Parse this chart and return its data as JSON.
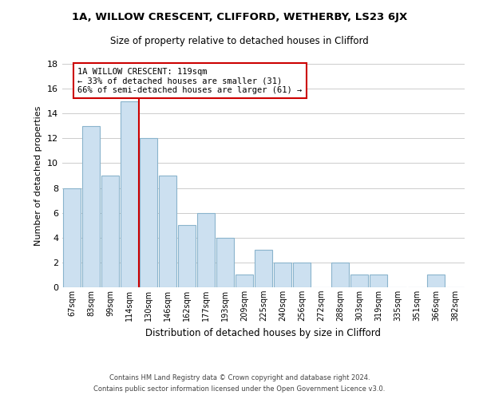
{
  "title": "1A, WILLOW CRESCENT, CLIFFORD, WETHERBY, LS23 6JX",
  "subtitle": "Size of property relative to detached houses in Clifford",
  "xlabel": "Distribution of detached houses by size in Clifford",
  "ylabel": "Number of detached properties",
  "bar_labels": [
    "67sqm",
    "83sqm",
    "99sqm",
    "114sqm",
    "130sqm",
    "146sqm",
    "162sqm",
    "177sqm",
    "193sqm",
    "209sqm",
    "225sqm",
    "240sqm",
    "256sqm",
    "272sqm",
    "288sqm",
    "303sqm",
    "319sqm",
    "335sqm",
    "351sqm",
    "366sqm",
    "382sqm"
  ],
  "bar_values": [
    8,
    13,
    9,
    15,
    12,
    9,
    5,
    6,
    4,
    1,
    3,
    2,
    2,
    0,
    2,
    1,
    1,
    0,
    0,
    1,
    0
  ],
  "bar_color": "#cce0f0",
  "bar_edge_color": "#8ab4cc",
  "highlight_line_color": "#cc0000",
  "annotation_title": "1A WILLOW CRESCENT: 119sqm",
  "annotation_line1": "← 33% of detached houses are smaller (31)",
  "annotation_line2": "66% of semi-detached houses are larger (61) →",
  "annotation_box_edge": "#cc0000",
  "ylim": [
    0,
    18
  ],
  "yticks": [
    0,
    2,
    4,
    6,
    8,
    10,
    12,
    14,
    16,
    18
  ],
  "footer1": "Contains HM Land Registry data © Crown copyright and database right 2024.",
  "footer2": "Contains public sector information licensed under the Open Government Licence v3.0.",
  "background_color": "#ffffff",
  "grid_color": "#cccccc"
}
